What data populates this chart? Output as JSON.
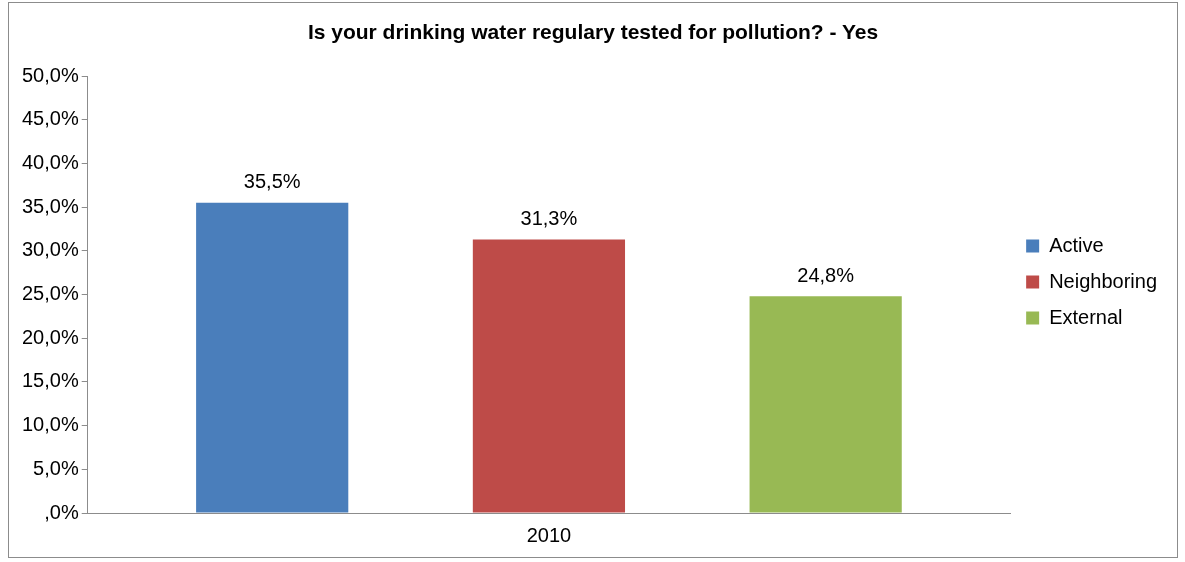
{
  "chart_data": {
    "type": "bar",
    "title": "Is your drinking water regulary tested for pollution? - Yes",
    "categories": [
      "2010"
    ],
    "series": [
      {
        "name": "Active",
        "color": "#4a7ebb",
        "values": [
          35.5
        ],
        "value_labels": [
          "35,5%"
        ]
      },
      {
        "name": "Neighboring",
        "color": "#be4b48",
        "values": [
          31.3
        ],
        "value_labels": [
          "31,3%"
        ]
      },
      {
        "name": "External",
        "color": "#98b954",
        "values": [
          24.8
        ],
        "value_labels": [
          "24,8%"
        ]
      }
    ],
    "ylim": [
      0,
      50
    ],
    "yticks": [
      {
        "value": 0,
        "label": ",0%"
      },
      {
        "value": 5,
        "label": "5,0%"
      },
      {
        "value": 10,
        "label": "10,0%"
      },
      {
        "value": 15,
        "label": "15,0%"
      },
      {
        "value": 20,
        "label": "20,0%"
      },
      {
        "value": 25,
        "label": "25,0%"
      },
      {
        "value": 30,
        "label": "30,0%"
      },
      {
        "value": 35,
        "label": "35,0%"
      },
      {
        "value": 40,
        "label": "40,0%"
      },
      {
        "value": 45,
        "label": "45,0%"
      },
      {
        "value": 50,
        "label": "50,0%"
      }
    ],
    "grid": false,
    "legend": "right"
  }
}
